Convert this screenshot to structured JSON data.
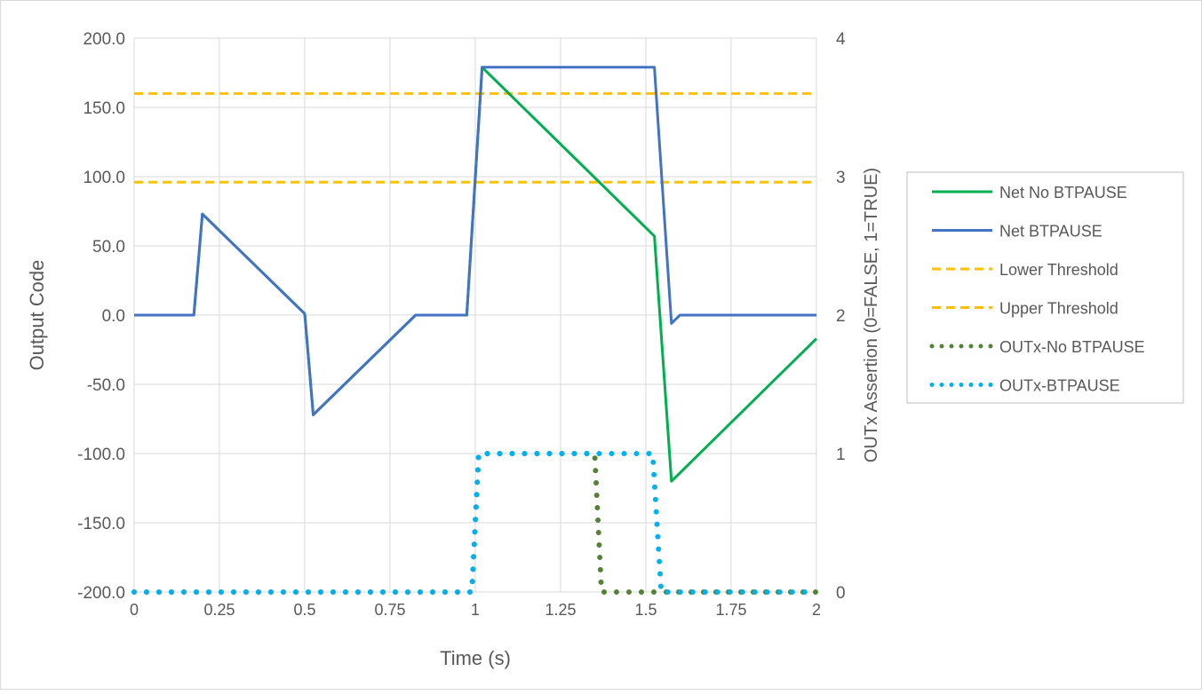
{
  "chart_data": {
    "type": "line",
    "xlabel": "Time (s)",
    "ylabel": "Output Code",
    "y2label": "OUTx Assertion (0=FALSE, 1=TRUE)",
    "xlim": [
      0,
      2
    ],
    "ylim": [
      -200,
      200
    ],
    "y2lim": [
      0,
      4
    ],
    "xticks": [
      "0",
      "0.25",
      "0.5",
      "0.75",
      "1",
      "1.25",
      "1.5",
      "1.75",
      "2"
    ],
    "yticks": [
      "200.0",
      "150.0",
      "100.0",
      "50.0",
      "0.0",
      "-50.0",
      "-100.0",
      "-150.0",
      "-200.0"
    ],
    "y2ticks": [
      "4",
      "3",
      "2",
      "1",
      "0"
    ],
    "grid": true,
    "legend_position": "right",
    "series": [
      {
        "name": "Net No BTPAUSE",
        "axis": "left",
        "color": "#00b050",
        "style": "solid",
        "x": [
          0,
          0.175,
          0.2,
          0.5,
          0.525,
          0.825,
          0.975,
          1.02,
          1.525,
          1.575,
          2
        ],
        "y": [
          0,
          0,
          73,
          1,
          -72,
          0,
          0,
          179,
          57,
          -120,
          -17
        ]
      },
      {
        "name": "Net BTPAUSE",
        "axis": "left",
        "color": "#4472c4",
        "style": "solid",
        "x": [
          0,
          0.175,
          0.2,
          0.5,
          0.525,
          0.825,
          0.975,
          1.02,
          1.525,
          1.575,
          1.6,
          2
        ],
        "y": [
          0,
          0,
          73,
          1,
          -72,
          0,
          0,
          179,
          179,
          -6,
          0,
          0
        ]
      },
      {
        "name": "Lower Threshold",
        "axis": "left",
        "color": "#ffc000",
        "style": "dashed",
        "x": [
          0,
          2
        ],
        "y": [
          96,
          96
        ]
      },
      {
        "name": "Upper Threshold",
        "axis": "left",
        "color": "#ffc000",
        "style": "dashed",
        "x": [
          0,
          2
        ],
        "y": [
          160,
          160
        ]
      },
      {
        "name": "OUTx-No BTPAUSE",
        "axis": "right",
        "color": "#548235",
        "style": "dotted",
        "x": [
          0,
          0.99,
          1.01,
          1.35,
          1.37,
          2
        ],
        "y": [
          0,
          0,
          1,
          1,
          0,
          0
        ]
      },
      {
        "name": "OUTx-BTPAUSE",
        "axis": "right",
        "color": "#00b0f0",
        "style": "dotted",
        "x": [
          0,
          0.99,
          1.01,
          1.52,
          1.545,
          2
        ],
        "y": [
          0,
          0,
          1,
          1,
          0,
          0
        ]
      }
    ]
  }
}
